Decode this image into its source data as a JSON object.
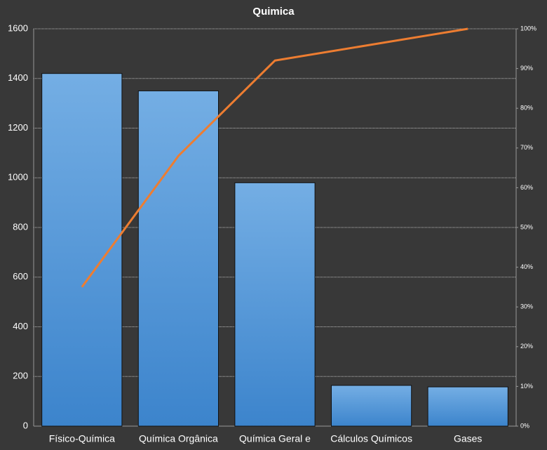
{
  "chart_data": {
    "type": "pareto",
    "title": "Quimica",
    "categories": [
      "Físico-Química",
      "Química Orgânica",
      "Química Geral e",
      "Cálculos Químicos",
      "Gases"
    ],
    "series": [
      {
        "type": "bar",
        "color": "#4a8fd6",
        "values": [
          1420,
          1350,
          980,
          164,
          158
        ]
      },
      {
        "type": "line",
        "color": "#ed7d31",
        "axis": "y2",
        "values": [
          35,
          68,
          92,
          96,
          100
        ]
      }
    ],
    "ylim": [
      0,
      1600
    ],
    "yticks": [
      0,
      200,
      400,
      600,
      800,
      1000,
      1200,
      1400,
      1600
    ],
    "y2lim": [
      0,
      100
    ],
    "y2ticks": [
      {
        "value": 0,
        "label": "0%"
      },
      {
        "value": 10,
        "label": "10%"
      },
      {
        "value": 20,
        "label": "20%"
      },
      {
        "value": 30,
        "label": "30%"
      },
      {
        "value": 40,
        "label": "40%"
      },
      {
        "value": 50,
        "label": "50%"
      },
      {
        "value": 60,
        "label": "60%"
      },
      {
        "value": 70,
        "label": "70%"
      },
      {
        "value": 80,
        "label": "80%"
      },
      {
        "value": 90,
        "label": "90%"
      },
      {
        "value": 100,
        "label": "100%"
      }
    ],
    "grid": true
  }
}
